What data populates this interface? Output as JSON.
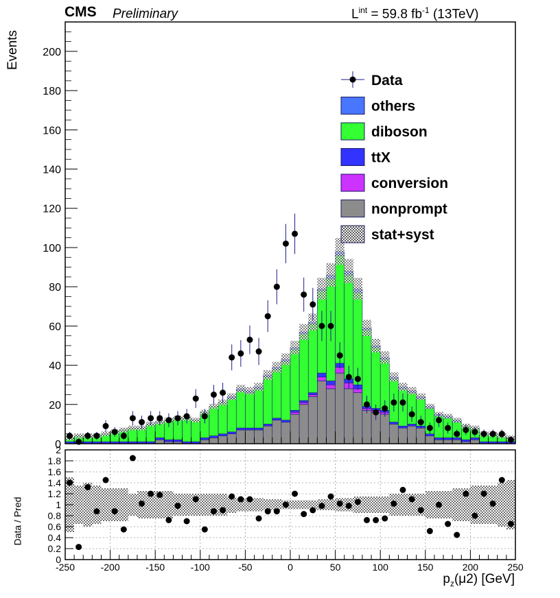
{
  "header": {
    "experiment": "CMS",
    "status": "Preliminary",
    "lumi_prefix": "L",
    "lumi_sup": "int",
    "lumi_mid": " = 59.8 fb",
    "lumi_sup2": "-1",
    "lumi_suffix": " (13TeV)"
  },
  "axes": {
    "ylabel_main": "Events",
    "ylabel_ratio": "Data / Pred",
    "xlabel_pre": "p",
    "xlabel_sub": "z",
    "xlabel_post": "(μ2) [GeV]"
  },
  "colors": {
    "others": "#4876ff",
    "diboson": "#33ff33",
    "ttX": "#3333ff",
    "conversion": "#cc33ff",
    "nonprompt": "#8c8c8c",
    "data": "#000000",
    "outline": "#1a1a66"
  },
  "chart_data": {
    "type": "bar",
    "title": "",
    "x_label": "p_z(μ2) [GeV]",
    "y_label": "Events",
    "xlim": [
      -250,
      250
    ],
    "ylim": [
      0,
      215
    ],
    "ratio_ylim": [
      0,
      2
    ],
    "bin_width": 10,
    "bin_edges_start": -250,
    "x_ticks": [
      -250,
      -200,
      -150,
      -100,
      -50,
      0,
      50,
      100,
      150,
      200,
      250
    ],
    "y_ticks": [
      0,
      20,
      40,
      60,
      80,
      100,
      120,
      140,
      160,
      180,
      200
    ],
    "ratio_ticks": [
      0,
      0.2,
      0.4,
      0.6,
      0.8,
      1,
      1.2,
      1.4,
      1.6,
      1.8,
      2
    ],
    "legend": [
      "Data",
      "others",
      "diboson",
      "ttX",
      "conversion",
      "nonprompt",
      "stat+syst"
    ],
    "legend_position": "top-right",
    "series": [
      {
        "name": "nonprompt",
        "values": [
          0,
          0,
          0,
          0,
          0,
          0,
          0,
          0,
          0,
          0,
          2,
          1,
          1,
          0,
          0,
          2,
          3,
          4,
          5,
          7,
          7,
          7,
          9,
          12,
          11,
          15,
          20,
          24,
          32,
          28,
          36,
          28,
          26,
          17,
          16,
          15,
          10,
          8,
          9,
          8,
          4,
          2,
          2,
          2,
          1,
          2,
          0,
          0,
          0,
          0
        ]
      },
      {
        "name": "conversion",
        "values": [
          0,
          0,
          0,
          0,
          0,
          0,
          0,
          0,
          0,
          0,
          0,
          0,
          0,
          0,
          0,
          0,
          0,
          0,
          0,
          0,
          0,
          0,
          0,
          0,
          0,
          1,
          1,
          1,
          2,
          2,
          3,
          3,
          2,
          1,
          1,
          1,
          0,
          0,
          0,
          0,
          0,
          0,
          0,
          0,
          0,
          0,
          0,
          0,
          0,
          0
        ]
      },
      {
        "name": "ttX",
        "values": [
          1,
          1,
          1,
          1,
          1,
          1,
          1,
          1,
          1,
          1,
          1,
          1,
          1,
          1,
          1,
          1,
          1,
          1,
          1,
          1,
          1,
          1,
          1,
          1,
          1,
          1,
          1,
          1,
          2,
          2,
          2,
          2,
          2,
          1,
          1,
          1,
          1,
          1,
          1,
          1,
          1,
          1,
          1,
          1,
          1,
          1,
          1,
          1,
          1,
          1
        ]
      },
      {
        "name": "diboson",
        "values": [
          2,
          3,
          3,
          3,
          4,
          5,
          6,
          7,
          7,
          9,
          8,
          10,
          11,
          12,
          11,
          13,
          15,
          16,
          17,
          19,
          18,
          20,
          24,
          25,
          30,
          31,
          34,
          35,
          42,
          52,
          55,
          53,
          47,
          39,
          31,
          26,
          22,
          19,
          16,
          14,
          13,
          11,
          10,
          8,
          7,
          5,
          4,
          4,
          3,
          2
        ]
      },
      {
        "name": "others",
        "values": [
          0,
          0,
          0,
          0,
          0,
          0,
          0,
          0,
          0,
          0,
          0,
          0,
          0,
          0,
          0,
          0,
          0,
          0,
          1,
          1,
          1,
          1,
          1,
          1,
          1,
          1,
          1,
          1,
          1,
          2,
          2,
          2,
          2,
          1,
          1,
          1,
          1,
          1,
          1,
          1,
          1,
          1,
          1,
          1,
          0,
          0,
          0,
          0,
          0,
          0
        ]
      }
    ],
    "data_points": {
      "x": [
        -245,
        -235,
        -225,
        -215,
        -205,
        -195,
        -185,
        -175,
        -165,
        -155,
        -145,
        -135,
        -125,
        -115,
        -105,
        -95,
        -85,
        -75,
        -65,
        -55,
        -45,
        -35,
        -25,
        -15,
        -5,
        5,
        15,
        25,
        35,
        45,
        55,
        65,
        75,
        85,
        95,
        105,
        115,
        125,
        135,
        145,
        155,
        165,
        175,
        185,
        195,
        205,
        215,
        225,
        235,
        245
      ],
      "y": [
        4,
        1,
        4,
        4,
        9,
        6,
        4,
        13,
        11,
        13,
        13,
        12,
        13,
        14,
        23,
        14,
        25,
        26,
        44,
        46,
        53,
        47,
        65,
        80,
        102,
        107,
        76,
        71,
        60,
        60,
        45,
        34,
        33,
        20,
        16,
        18,
        21,
        21,
        15,
        11,
        8,
        12,
        8,
        5,
        7,
        6,
        5,
        5,
        5,
        2
      ],
      "err": [
        2,
        1,
        2,
        2,
        3,
        2.5,
        2,
        3.6,
        3.3,
        3.6,
        3.6,
        3.5,
        3.6,
        3.7,
        4.8,
        3.7,
        5,
        5.1,
        6.6,
        6.8,
        7.3,
        6.9,
        8.1,
        8.9,
        10,
        10.3,
        8.7,
        8.4,
        7.7,
        7.7,
        6.7,
        5.8,
        5.7,
        4.5,
        4,
        4.2,
        4.6,
        4.6,
        3.9,
        3.3,
        2.8,
        3.5,
        2.8,
        2.2,
        2.6,
        2.4,
        2.2,
        2.2,
        2.2,
        1.4
      ]
    },
    "ratio": {
      "values": [
        1.4,
        0.23,
        1.32,
        0.88,
        1.45,
        0.88,
        0.55,
        1.85,
        1.02,
        1.2,
        1.18,
        0.72,
        0.98,
        0.7,
        1.1,
        0.55,
        0.88,
        0.9,
        1.15,
        1.1,
        1.1,
        0.75,
        0.88,
        0.88,
        1.0,
        1.2,
        0.83,
        0.9,
        0.98,
        1.15,
        1.02,
        0.98,
        1.05,
        0.72,
        0.72,
        0.75,
        1.02,
        1.27,
        1.1,
        0.9,
        0.52,
        1.0,
        0.65,
        0.45,
        1.2,
        0.8,
        1.2,
        1.02,
        1.45,
        0.65
      ],
      "band": [
        0.5,
        0.35,
        0.4,
        0.35,
        0.3,
        0.3,
        0.3,
        0.2,
        0.25,
        0.25,
        0.25,
        0.25,
        0.2,
        0.2,
        0.2,
        0.2,
        0.2,
        0.2,
        0.15,
        0.12,
        0.12,
        0.12,
        0.1,
        0.1,
        0.08,
        0.08,
        0.08,
        0.08,
        0.1,
        0.1,
        0.12,
        0.12,
        0.15,
        0.15,
        0.15,
        0.15,
        0.2,
        0.2,
        0.2,
        0.2,
        0.25,
        0.25,
        0.25,
        0.3,
        0.3,
        0.35,
        0.35,
        0.35,
        0.4,
        0.45
      ]
    }
  }
}
